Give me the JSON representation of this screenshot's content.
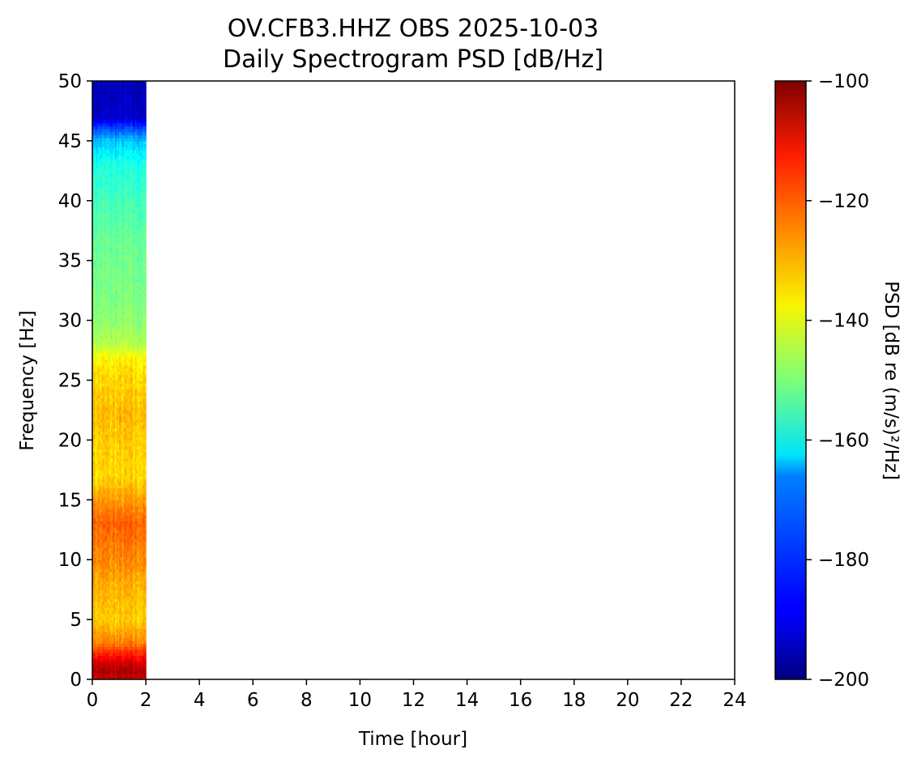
{
  "chart_data": {
    "type": "heatmap",
    "title_line1": "OV.CFB3.HHZ OBS 2025-10-03",
    "title_line2": "Daily Spectrogram PSD [dB/Hz]",
    "xlabel": "Time [hour]",
    "ylabel": "Frequency [Hz]",
    "xlim": [
      0,
      24
    ],
    "ylim": [
      0,
      50
    ],
    "x_ticks": [
      "0",
      "2",
      "4",
      "6",
      "8",
      "10",
      "12",
      "14",
      "16",
      "18",
      "20",
      "22",
      "24"
    ],
    "y_ticks": [
      "0",
      "5",
      "10",
      "15",
      "20",
      "25",
      "30",
      "35",
      "40",
      "45",
      "50"
    ],
    "data_time_range": [
      0,
      2
    ],
    "colormap": "jet",
    "colorbar": {
      "label": "PSD [dB re (m/s)²/Hz]",
      "range": [
        -200,
        -100
      ],
      "ticks": [
        "−200",
        "−180",
        "−160",
        "−140",
        "−120",
        "−100"
      ]
    },
    "psd_profile": {
      "frequency_hz": [
        0,
        0.5,
        1,
        1.5,
        2,
        3,
        5,
        8,
        10,
        12,
        13,
        14,
        15,
        17,
        20,
        22,
        24,
        26,
        27,
        28,
        30,
        33,
        36,
        40,
        43,
        45,
        46,
        47,
        50
      ],
      "psd_db": [
        -108,
        -105,
        -106,
        -110,
        -114,
        -125,
        -133,
        -130,
        -126,
        -124,
        -122,
        -125,
        -128,
        -134,
        -133,
        -131,
        -133,
        -135,
        -138,
        -145,
        -149,
        -151,
        -152,
        -156,
        -160,
        -168,
        -180,
        -193,
        -195
      ]
    }
  }
}
